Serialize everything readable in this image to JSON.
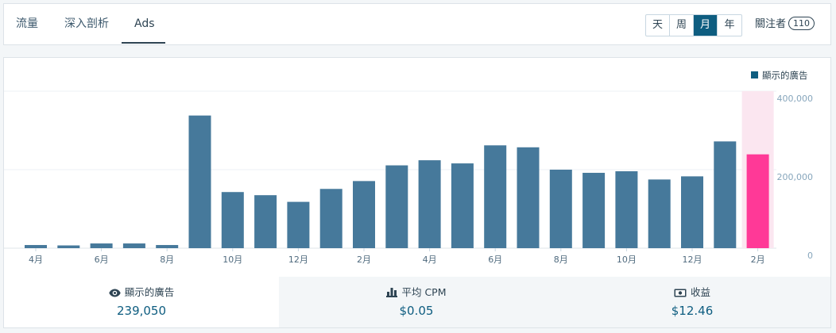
{
  "tabs": [
    {
      "label": "流量"
    },
    {
      "label": "深入剖析"
    },
    {
      "label": "Ads"
    }
  ],
  "period": {
    "options": [
      "天",
      "周",
      "月",
      "年"
    ],
    "selected": "月"
  },
  "follow": {
    "label": "關注者",
    "count": "110"
  },
  "colors": {
    "bar": "#46799b",
    "highlight": "#ff3997",
    "highlight_bg": "#fbe6f0",
    "legend": "#0e5d80"
  },
  "chart_data": {
    "type": "bar",
    "legend": "顯示的廣告",
    "categories": [
      "4月",
      "5月",
      "6月",
      "7月",
      "8月",
      "9月",
      "10月",
      "11月",
      "12月",
      "1月",
      "2月",
      "3月",
      "4月",
      "5月",
      "6月",
      "7月",
      "8月",
      "9月",
      "10月",
      "11月",
      "12月",
      "1月",
      "2月"
    ],
    "x_tick_labels": [
      "4月",
      "",
      "6月",
      "",
      "8月",
      "",
      "10月",
      "",
      "12月",
      "",
      "2月",
      "",
      "4月",
      "",
      "6月",
      "",
      "8月",
      "",
      "10月",
      "",
      "12月",
      "",
      "2月"
    ],
    "values": [
      8000,
      7000,
      12000,
      12000,
      8000,
      338000,
      143000,
      135000,
      118000,
      151000,
      171000,
      211000,
      224000,
      216000,
      262000,
      257000,
      200000,
      192000,
      196000,
      175000,
      183000,
      272000,
      239050
    ],
    "highlighted_index": 22,
    "ylim": [
      0,
      400000
    ],
    "y_ticks": [
      0,
      200000,
      400000
    ],
    "y_tick_labels": [
      "0",
      "200,000",
      "400,000"
    ],
    "grid": true
  },
  "stats": [
    {
      "label": "顯示的廣告",
      "value": "239,050",
      "icon": "eye-icon"
    },
    {
      "label": "平均 CPM",
      "value": "$0.05",
      "icon": "bar-chart-icon"
    },
    {
      "label": "收益",
      "value": "$12.46",
      "icon": "money-icon"
    }
  ]
}
